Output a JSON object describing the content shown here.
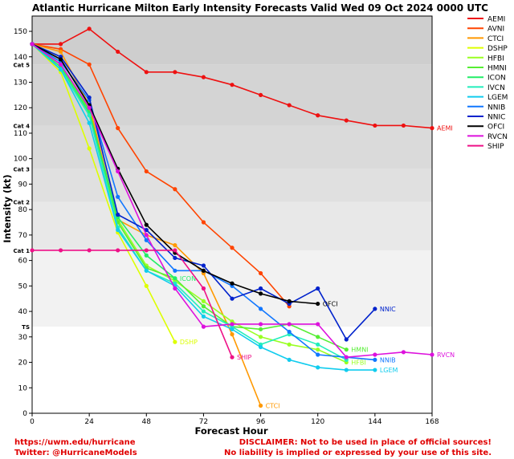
{
  "chart_data": {
    "type": "line",
    "title": "Atlantic Hurricane Milton Early Intensity Forecasts Valid Wed 09 Oct 2024 0000 UTC",
    "xlabel": "Forecast Hour",
    "ylabel": "Intensity (kt)",
    "xlim": [
      0,
      168
    ],
    "ylim": [
      0,
      156
    ],
    "xticks": [
      0,
      24,
      48,
      72,
      96,
      120,
      144,
      168
    ],
    "yticks": [
      0,
      10,
      20,
      30,
      40,
      50,
      60,
      70,
      80,
      90,
      100,
      110,
      120,
      130,
      140,
      150
    ],
    "categories_bands": [
      {
        "label": "TS",
        "value": 34
      },
      {
        "label": "Cat 1",
        "value": 64
      },
      {
        "label": "Cat 2",
        "value": 83
      },
      {
        "label": "Cat 3",
        "value": 96
      },
      {
        "label": "Cat 4",
        "value": 113
      },
      {
        "label": "Cat 5",
        "value": 137
      }
    ],
    "legend_position": "right",
    "grid": false,
    "series": [
      {
        "name": "AEMI",
        "color": "#ee1111",
        "label": "AEMI",
        "x": [
          0,
          12,
          24,
          36,
          48,
          60,
          72,
          84,
          96,
          108,
          120,
          132,
          144,
          156,
          168
        ],
        "y": [
          145,
          145,
          151,
          142,
          134,
          134,
          132,
          129,
          125,
          121,
          117,
          115,
          113,
          113,
          112
        ]
      },
      {
        "name": "AVNI",
        "color": "#ff4400",
        "label": "",
        "x": [
          0,
          12,
          24,
          36,
          48,
          60,
          72,
          84,
          96,
          108
        ],
        "y": [
          145,
          143,
          137,
          112,
          95,
          88,
          75,
          65,
          55,
          42
        ]
      },
      {
        "name": "CTCI",
        "color": "#ff9900",
        "label": "CTCI",
        "x": [
          0,
          12,
          24,
          36,
          48,
          60,
          72,
          84,
          96
        ],
        "y": [
          145,
          142,
          121,
          76,
          70,
          66,
          55,
          31,
          3
        ]
      },
      {
        "name": "DSHP",
        "color": "#ddff00",
        "label": "DSHP",
        "x": [
          0,
          12,
          24,
          36,
          48,
          60
        ],
        "y": [
          145,
          134,
          104,
          71,
          50,
          28
        ]
      },
      {
        "name": "HFBI",
        "color": "#99ff22",
        "label": "HFBI",
        "x": [
          0,
          12,
          24,
          36,
          48,
          60,
          72,
          84,
          96,
          108,
          120,
          132
        ],
        "y": [
          145,
          136,
          118,
          76,
          58,
          52,
          44,
          36,
          30,
          27,
          25,
          20
        ]
      },
      {
        "name": "HMNI",
        "color": "#55ee33",
        "label": "HMNI",
        "x": [
          0,
          12,
          24,
          36,
          48,
          60,
          72,
          84,
          96,
          108,
          120,
          132
        ],
        "y": [
          145,
          137,
          119,
          75,
          57,
          53,
          42,
          34,
          33,
          35,
          30,
          25
        ]
      },
      {
        "name": "ICON",
        "color": "#22ee66",
        "label": "ICON",
        "x": [
          0,
          12,
          24,
          36,
          48,
          60
        ],
        "y": [
          145,
          136,
          118,
          77,
          62,
          53
        ]
      },
      {
        "name": "IVCN",
        "color": "#22eebb",
        "label": "",
        "x": [
          0,
          12,
          24,
          36,
          48,
          60,
          72,
          84,
          96,
          108,
          120,
          132
        ],
        "y": [
          145,
          135,
          117,
          73,
          56,
          51,
          40,
          34,
          27,
          31,
          27,
          21
        ]
      },
      {
        "name": "LGEM",
        "color": "#11ccee",
        "label": "LGEM",
        "x": [
          0,
          12,
          24,
          36,
          48,
          60,
          72,
          84,
          96,
          108,
          120,
          132,
          144
        ],
        "y": [
          145,
          135,
          114,
          72,
          56,
          50,
          38,
          33,
          26,
          21,
          18,
          17,
          17
        ]
      },
      {
        "name": "NNIB",
        "color": "#1177ff",
        "label": "NNIB",
        "x": [
          0,
          12,
          24,
          36,
          48,
          60,
          72,
          84,
          96,
          108,
          120,
          132,
          144
        ],
        "y": [
          145,
          138,
          123,
          85,
          68,
          56,
          56,
          50,
          41,
          32,
          23,
          22,
          21
        ]
      },
      {
        "name": "NNIC",
        "color": "#0022cc",
        "label": "NNIC",
        "x": [
          0,
          12,
          24,
          36,
          48,
          60,
          72,
          84,
          96,
          108,
          120,
          132,
          144
        ],
        "y": [
          145,
          140,
          124,
          78,
          72,
          61,
          58,
          45,
          49,
          43,
          49,
          29,
          41
        ]
      },
      {
        "name": "OFCI",
        "color": "#000000",
        "label": "OFCI",
        "x": [
          0,
          12,
          24,
          36,
          48,
          60,
          72,
          84,
          96,
          108,
          120
        ],
        "y": [
          145,
          139,
          121,
          96,
          74,
          63,
          56,
          51,
          47,
          44,
          43
        ]
      },
      {
        "name": "RVCN",
        "color": "#dd11dd",
        "label": "RVCN",
        "x": [
          0,
          12,
          24,
          36,
          48,
          60,
          72,
          84,
          96,
          108,
          120,
          132,
          144,
          156,
          168
        ],
        "y": [
          145,
          137,
          120,
          95,
          70,
          49,
          34,
          35,
          35,
          35,
          35,
          22,
          23,
          24,
          23
        ]
      },
      {
        "name": "SHIP",
        "color": "#ee1188",
        "label": "SHIP",
        "x": [
          0,
          12,
          24,
          36,
          48,
          60,
          72,
          84
        ],
        "y": [
          64,
          64,
          64,
          64,
          64,
          64,
          49,
          22
        ]
      }
    ]
  },
  "footer": {
    "left_line1": "https://uwm.edu/hurricane",
    "left_line2": "Twitter: @HurricaneModels",
    "right_line1": "DISCLAIMER: Not to be used in place of official sources!",
    "right_line2": "No liability is implied or expressed by your use of this site."
  }
}
